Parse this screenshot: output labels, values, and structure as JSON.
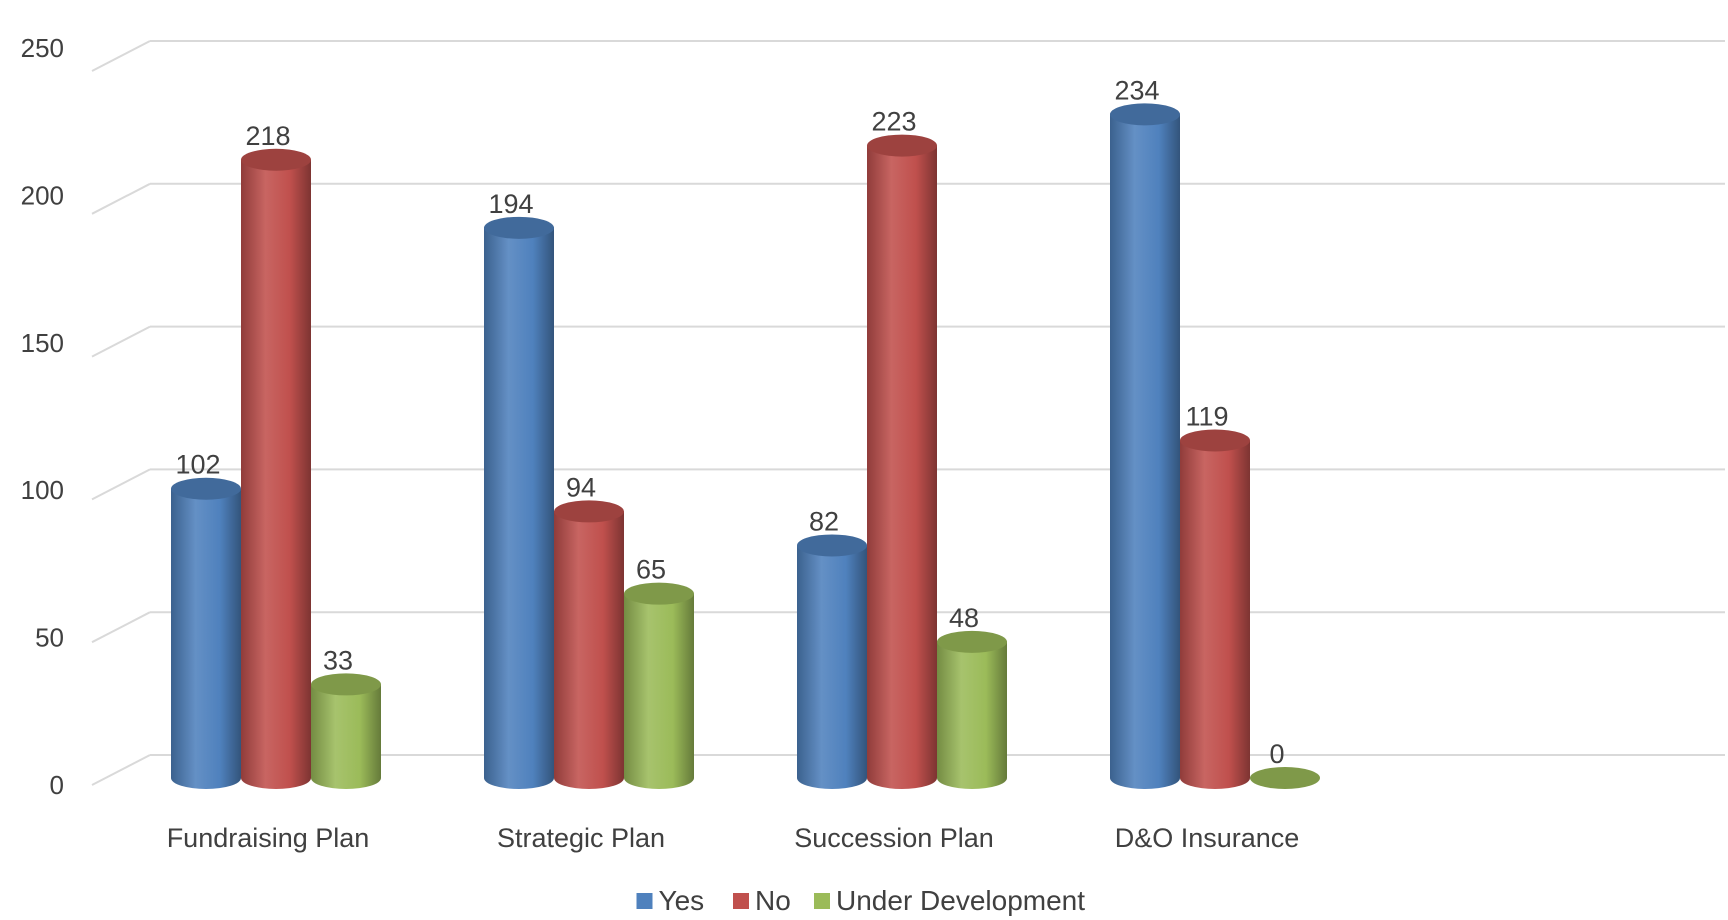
{
  "chart_data": {
    "type": "bar",
    "style": "3d-cylinder",
    "categories": [
      "Fundraising Plan",
      "Strategic Plan",
      "Succession Plan",
      "D&O Insurance"
    ],
    "series": [
      {
        "name": "Yes",
        "values": [
          102,
          194,
          82,
          234
        ],
        "color": "#4f81bd"
      },
      {
        "name": "No",
        "values": [
          218,
          94,
          223,
          119
        ],
        "color": "#c0504d"
      },
      {
        "name": "Under Development",
        "values": [
          33,
          65,
          48,
          0
        ],
        "color": "#9bbb59"
      }
    ],
    "y_ticks": [
      "0",
      "50",
      "100",
      "150",
      "200",
      "250"
    ],
    "ylim": [
      0,
      250
    ],
    "grid": true,
    "legend_position": "bottom-center",
    "data_labels": true
  }
}
